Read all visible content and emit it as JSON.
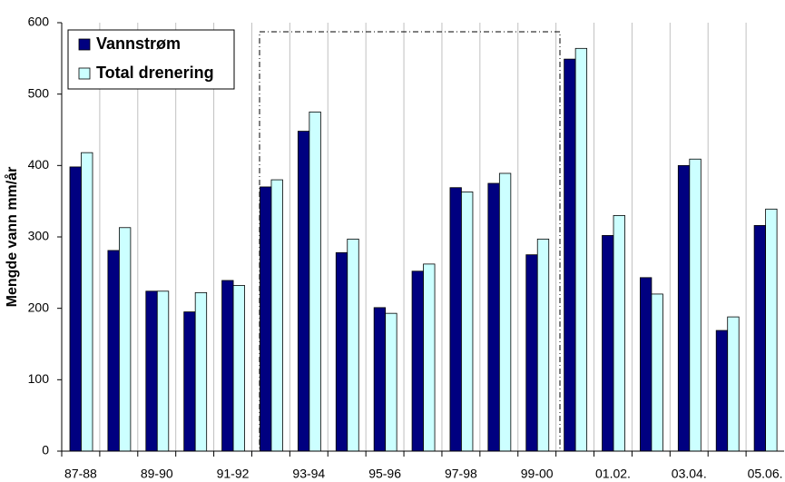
{
  "chart_data": {
    "type": "bar",
    "y_label": "Mengde vann mm/år",
    "categories": [
      "87-88",
      null,
      "89-90",
      null,
      "91-92",
      null,
      "93-94",
      null,
      "95-96",
      null,
      "97-98",
      null,
      "99-00",
      null,
      "01.02.",
      null,
      "03.04.",
      null,
      "05.06."
    ],
    "series": [
      {
        "name": "Vannstrøm",
        "color": "#000080",
        "values": [
          398,
          281,
          224,
          195,
          239,
          370,
          448,
          278,
          201,
          252,
          369,
          375,
          275,
          549,
          302,
          243,
          400,
          169,
          316
        ]
      },
      {
        "name": "Total drenering",
        "color": "#ccffff",
        "values": [
          418,
          313,
          224,
          222,
          232,
          380,
          475,
          297,
          193,
          262,
          363,
          389,
          297,
          564,
          330,
          220,
          409,
          188,
          339
        ]
      }
    ],
    "ylim": [
      0,
      600
    ],
    "yticks": [
      0,
      100,
      200,
      300,
      400,
      500,
      600
    ],
    "legend": "upper left"
  }
}
